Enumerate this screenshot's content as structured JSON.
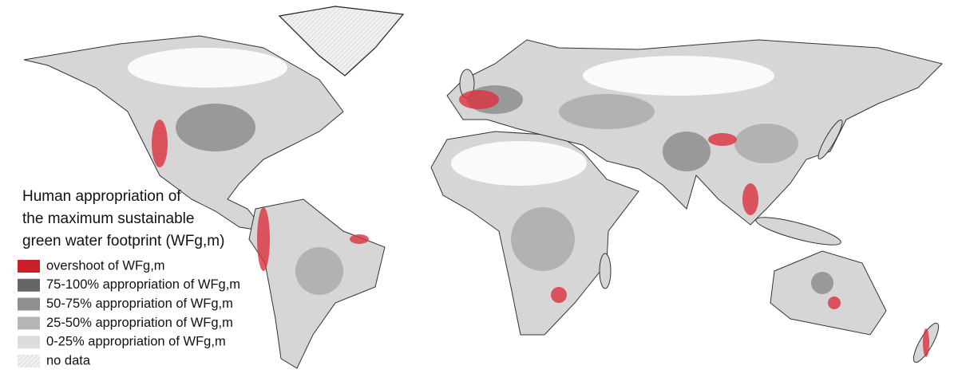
{
  "legend": {
    "title_lines": [
      "Human appropriation of",
      "the maximum sustainable",
      "green water footprint (WFg,m)"
    ],
    "items": [
      {
        "label": "overshoot of WFg,m",
        "color": "#cc1f2a"
      },
      {
        "label": "75-100% appropriation of WFg,m",
        "color": "#666666"
      },
      {
        "label": "50-75% appropriation of WFg,m",
        "color": "#8f8f8f"
      },
      {
        "label": "25-50% appropriation of WFg,m",
        "color": "#b5b5b5"
      },
      {
        "label": "0-25% appropriation of WFg,m",
        "color": "#dddddd"
      },
      {
        "label": "no data",
        "color": "#f0f0f0"
      }
    ]
  }
}
